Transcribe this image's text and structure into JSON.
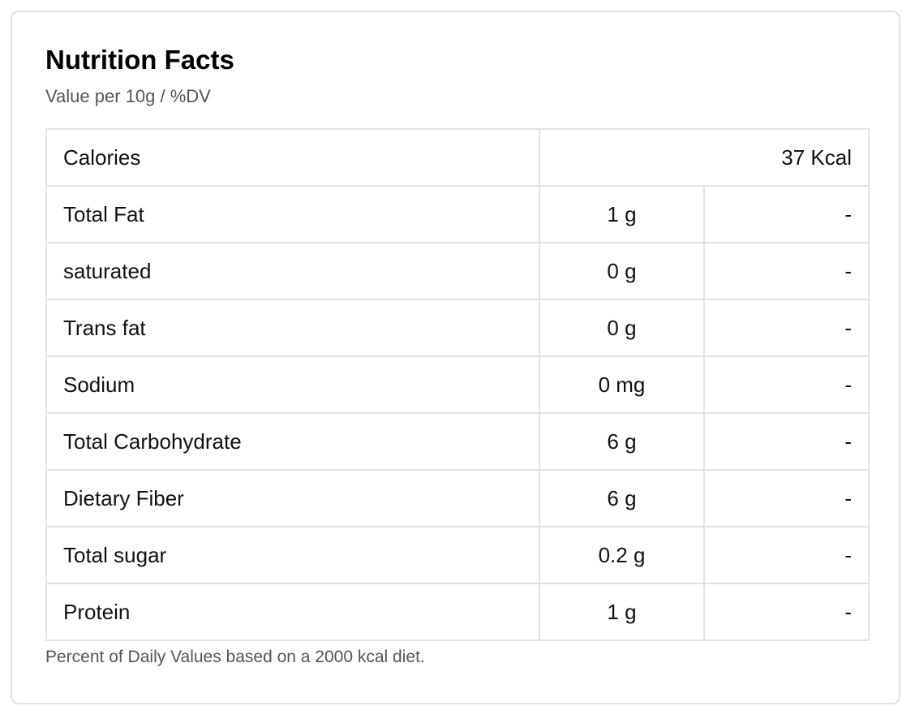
{
  "panel": {
    "title": "Nutrition Facts",
    "subtitle": "Value per 10g / %DV",
    "footnote": "Percent of Daily Values based on a 2000 kcal diet."
  },
  "calories": {
    "label": "Calories",
    "value": "37 Kcal"
  },
  "nutrients": [
    {
      "name": "Total Fat",
      "amount": "1 g",
      "dv": "-"
    },
    {
      "name": "saturated",
      "amount": "0 g",
      "dv": "-"
    },
    {
      "name": "Trans fat",
      "amount": "0 g",
      "dv": "-"
    },
    {
      "name": "Sodium",
      "amount": "0 mg",
      "dv": "-"
    },
    {
      "name": "Total Carbohydrate",
      "amount": "6 g",
      "dv": "-"
    },
    {
      "name": "Dietary Fiber",
      "amount": "6 g",
      "dv": "-"
    },
    {
      "name": "Total sugar",
      "amount": "0.2 g",
      "dv": "-"
    },
    {
      "name": "Protein",
      "amount": "1 g",
      "dv": "-"
    }
  ]
}
